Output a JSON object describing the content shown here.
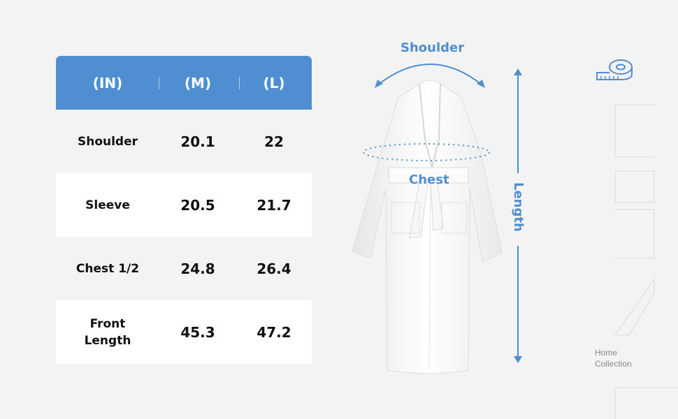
{
  "table": {
    "headers": [
      "(IN)",
      "(M)",
      "(L)"
    ],
    "rows": [
      {
        "label": "Shoulder",
        "m": "20.1",
        "l": "22"
      },
      {
        "label": "Sleeve",
        "m": "20.5",
        "l": "21.7"
      },
      {
        "label": "Chest 1/2",
        "m": "24.8",
        "l": "26.4"
      },
      {
        "label": "Front\nLength",
        "m": "45.3",
        "l": "47.2"
      }
    ]
  },
  "diagram": {
    "shoulder_label": "Shoulder",
    "chest_label": "Chest",
    "length_label": "Length"
  },
  "brand": {
    "line1": "Home",
    "line2": "Collection"
  },
  "colors": {
    "accent": "#4f8fd1",
    "background": "#f3f3f3"
  },
  "icons": {
    "tape": "measuring-tape-icon"
  }
}
